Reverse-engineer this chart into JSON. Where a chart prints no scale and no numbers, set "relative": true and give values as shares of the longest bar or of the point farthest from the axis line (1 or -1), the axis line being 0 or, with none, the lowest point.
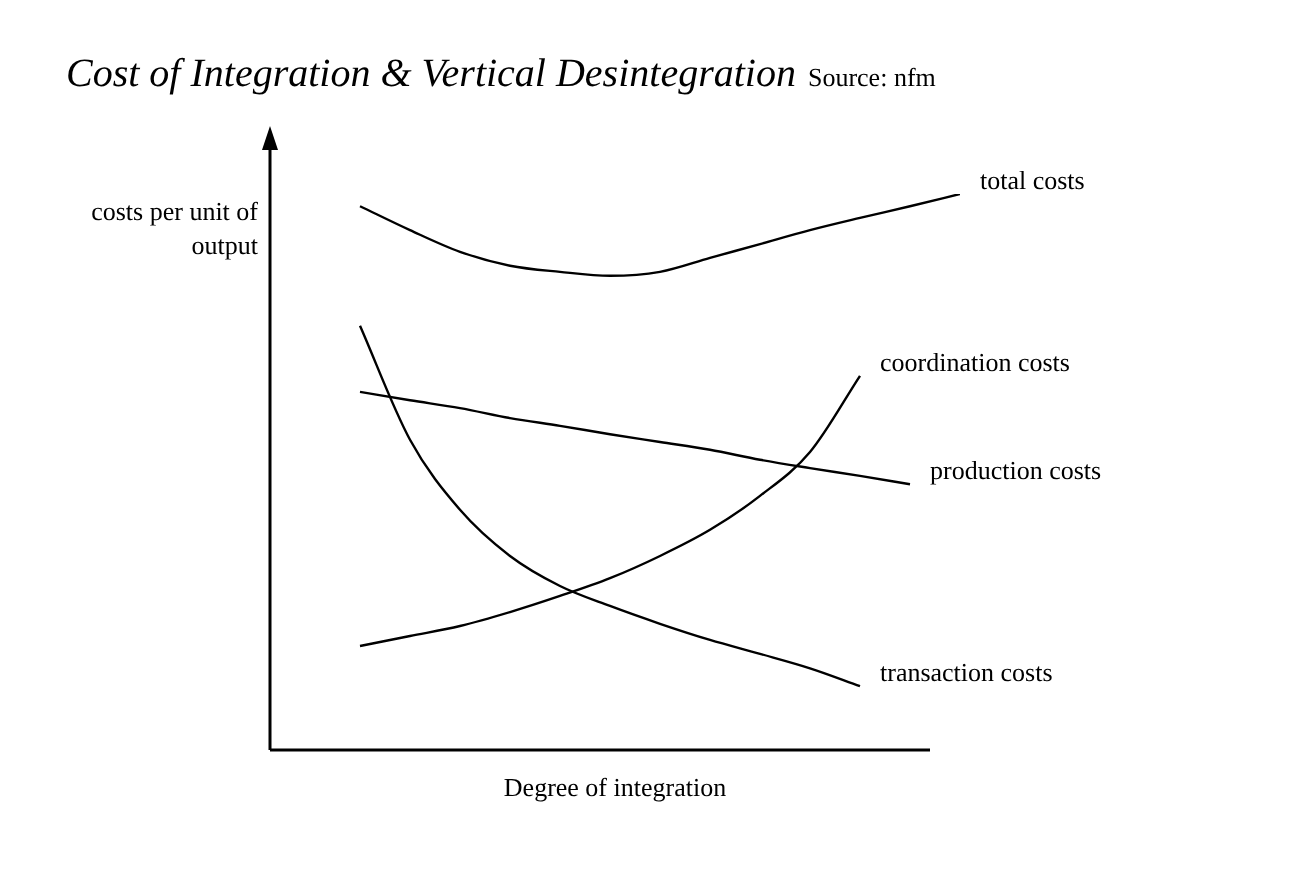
{
  "chart_data": {
    "type": "line",
    "title": "Cost of Integration & Vertical Desintegration",
    "annotations": [
      "Source: nfm"
    ],
    "ylabel": "costs per unit of output",
    "xlabel": "Degree of integration",
    "relative": true,
    "legend": false,
    "marker": "none",
    "line_style": "solid",
    "categories": [
      null,
      null,
      null,
      null,
      null,
      null,
      null,
      null,
      null,
      null,
      null,
      null,
      null
    ],
    "series": [
      {
        "name": "total costs",
        "color": "#000000",
        "values": [
          0.978,
          0.935,
          0.896,
          0.871,
          0.86,
          0.853,
          0.86,
          0.885,
          0.91,
          0.935,
          0.957,
          0.978,
          1
        ]
      },
      {
        "name": "coordination costs",
        "color": "#000000",
        "values": [
          0.187,
          0.205,
          0.223,
          0.248,
          0.277,
          0.309,
          0.349,
          0.396,
          0.457,
          0.536,
          0.673,
          null,
          null
        ]
      },
      {
        "name": "production costs",
        "color": "#000000",
        "values": [
          0.644,
          0.629,
          0.615,
          0.597,
          0.583,
          0.568,
          0.554,
          0.54,
          0.522,
          0.507,
          0.493,
          0.478,
          null
        ]
      },
      {
        "name": "transaction costs",
        "color": "#000000",
        "values": [
          0.763,
          0.558,
          0.432,
          0.349,
          0.295,
          0.259,
          0.227,
          0.198,
          0.173,
          0.147,
          0.115,
          null,
          null
        ]
      }
    ]
  }
}
